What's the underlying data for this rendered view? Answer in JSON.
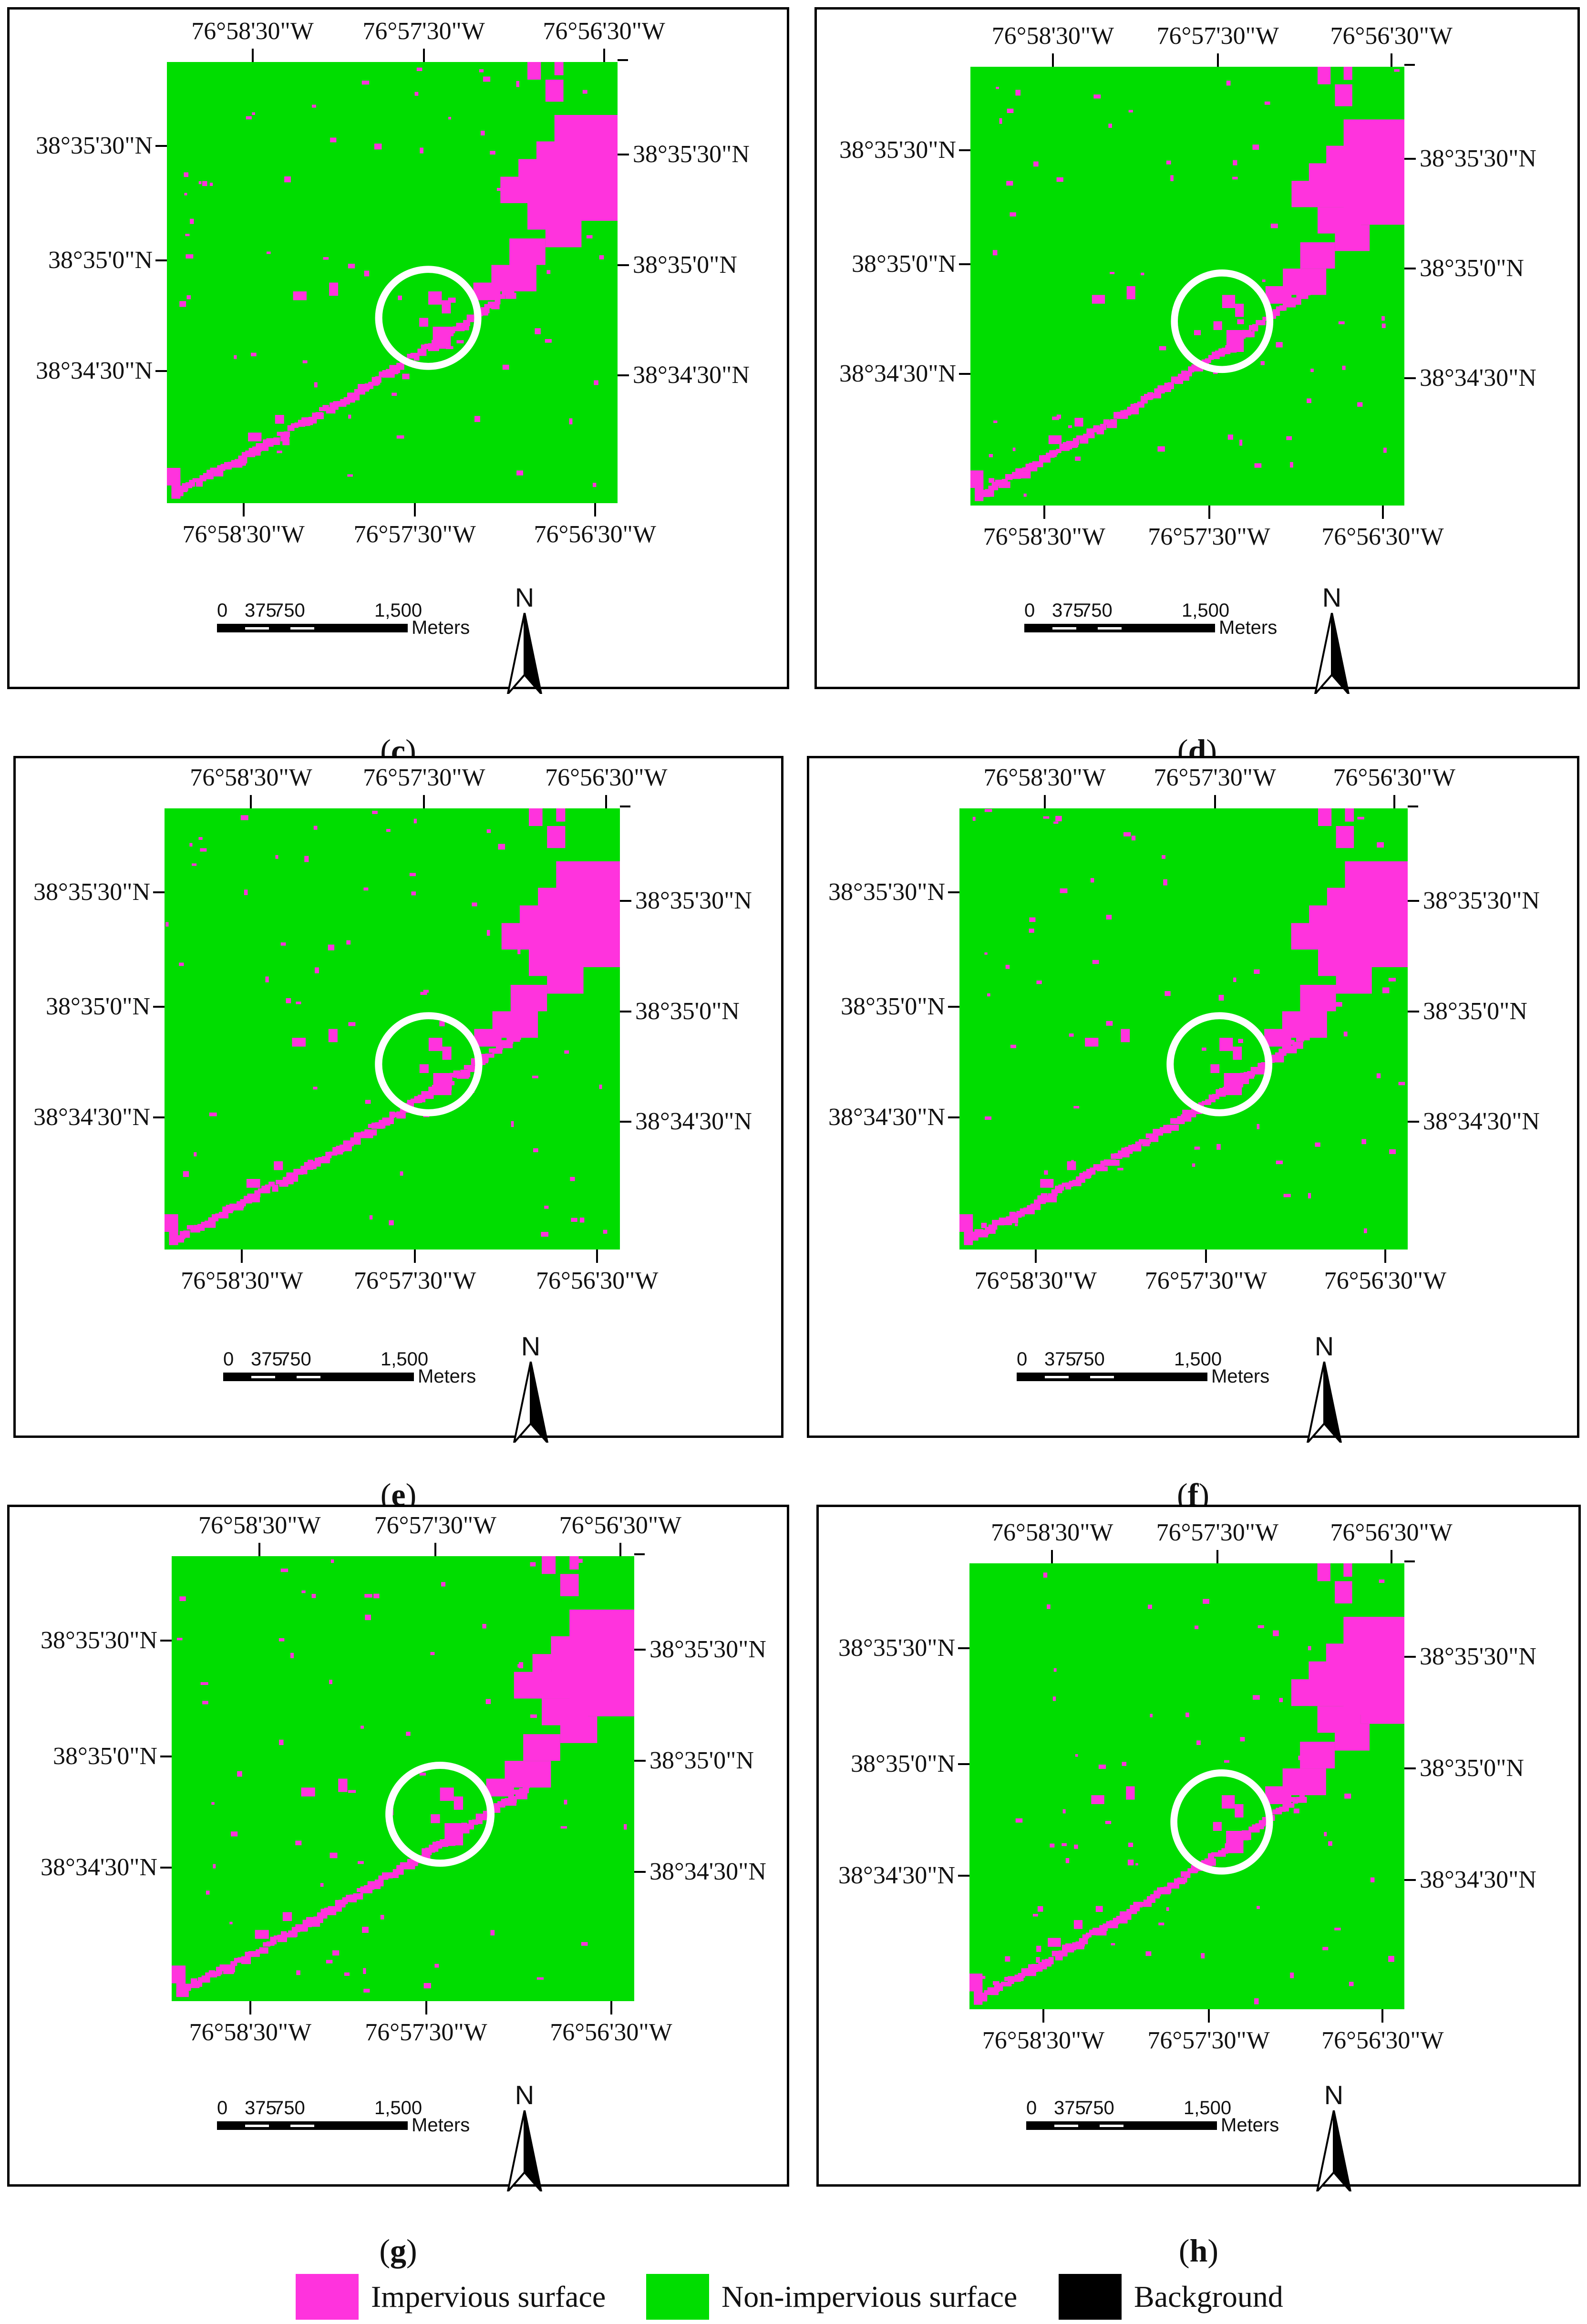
{
  "labels": {
    "lon_top": [
      "76°58'30\"W",
      "76°57'30\"W",
      "76°56'30\"W"
    ],
    "lon_bottom": [
      "76°58'30\"W",
      "76°57'30\"W",
      "76°56'30\"W"
    ],
    "lat_left": [
      "38°35'30\"N",
      "38°35'0\"N",
      "38°34'30\"N"
    ],
    "lat_right": [
      "38°35'30\"N",
      "38°35'0\"N",
      "38°34'30\"N"
    ]
  },
  "scale_bar": {
    "ticks": [
      "0",
      "375",
      "750",
      "1,500"
    ],
    "unit": "Meters"
  },
  "north_arrow": {
    "letter": "N"
  },
  "panels": [
    {
      "id": "c",
      "caption_open": "(",
      "caption_letter": "c",
      "caption_close": ")"
    },
    {
      "id": "d",
      "caption_open": "(",
      "caption_letter": "d",
      "caption_close": ")"
    },
    {
      "id": "e",
      "caption_open": "(",
      "caption_letter": "e",
      "caption_close": ")"
    },
    {
      "id": "f",
      "caption_open": "(",
      "caption_letter": "f",
      "caption_close": ")"
    },
    {
      "id": "g",
      "caption_open": "(",
      "caption_letter": "g",
      "caption_close": ")"
    },
    {
      "id": "h",
      "caption_open": "(",
      "caption_letter": "h",
      "caption_close": ")"
    }
  ],
  "legend": [
    {
      "label": "Impervious surface",
      "color": "#ff33dd"
    },
    {
      "label": "Non-impervious surface",
      "color": "#00dd00"
    },
    {
      "label": "Background",
      "color": "#000000"
    }
  ],
  "colors": {
    "impervious": "#ff33dd",
    "non_impervious": "#00dd00",
    "background": "#000000",
    "highlight_circle": "#ffffff"
  }
}
